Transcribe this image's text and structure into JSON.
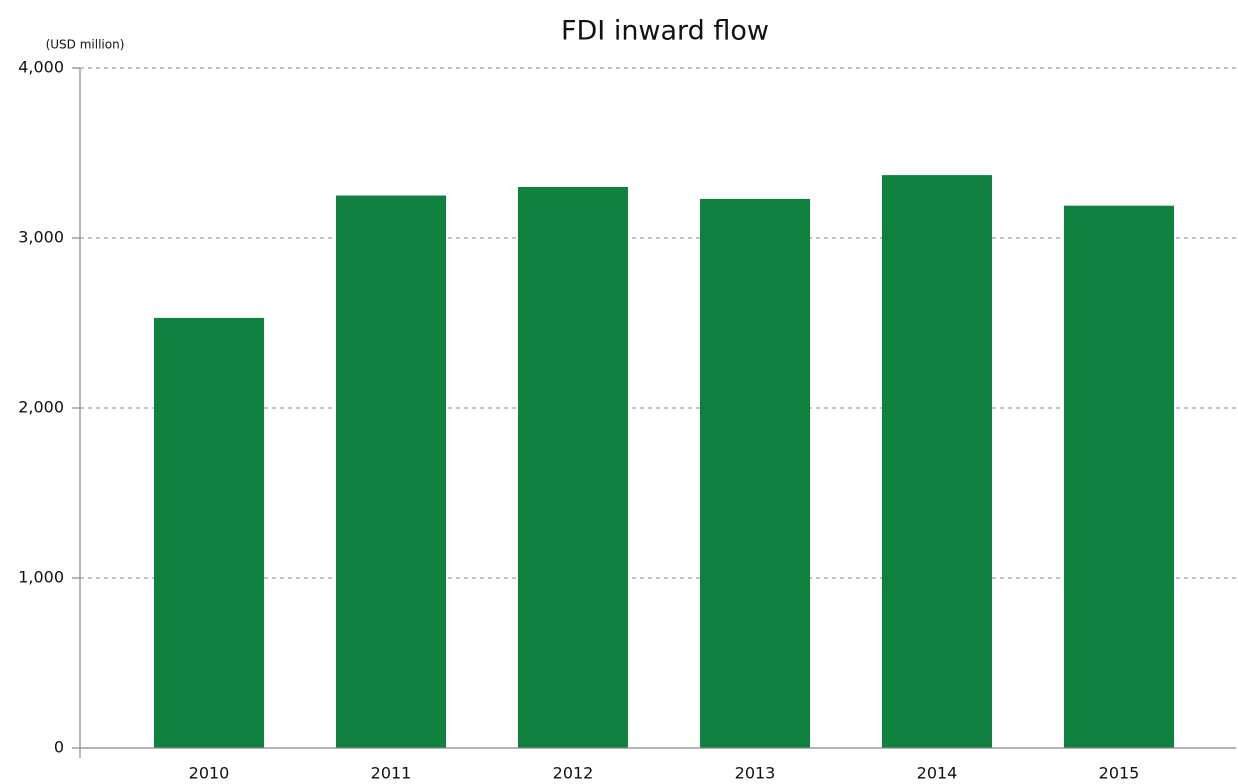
{
  "chart_data": {
    "type": "bar",
    "title": "FDI inward flow",
    "y_label": "(USD million)",
    "categories": [
      "2010",
      "2011",
      "2012",
      "2013",
      "2014",
      "2015"
    ],
    "values": [
      2530,
      3250,
      3300,
      3230,
      3370,
      3190
    ],
    "color": "#10803f",
    "ylim": [
      0,
      4000
    ],
    "yticks": [
      0,
      {
        "value": 1000,
        "label": "1,000"
      },
      {
        "value": 2000,
        "label": "2,000"
      },
      {
        "value": 3000,
        "label": "3,000"
      },
      {
        "value": 4000,
        "label": "4,000"
      }
    ],
    "grid": true
  }
}
